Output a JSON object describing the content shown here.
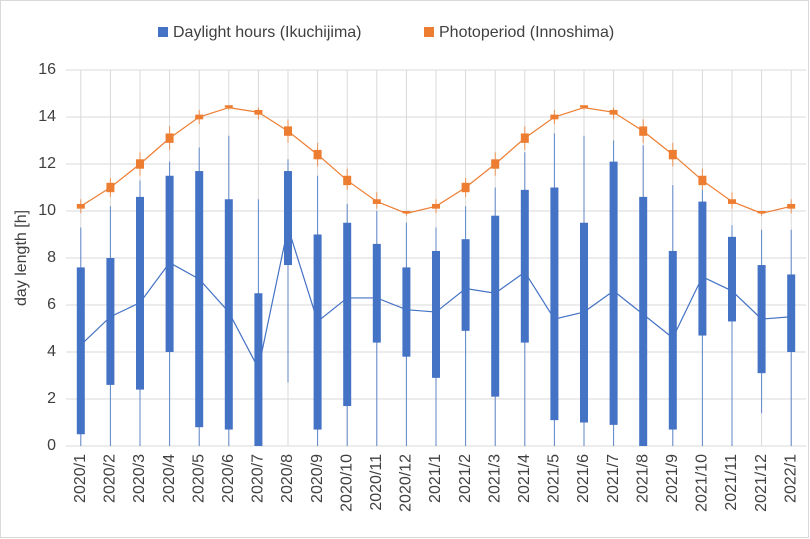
{
  "chart_data": {
    "type": "box",
    "y_label": "day length [h]",
    "categories": [
      "2020/1",
      "2020/2",
      "2020/3",
      "2020/4",
      "2020/5",
      "2020/6",
      "2020/7",
      "2020/8",
      "2020/9",
      "2020/10",
      "2020/11",
      "2020/12",
      "2021/1",
      "2021/2",
      "2021/3",
      "2021/4",
      "2021/5",
      "2021/6",
      "2021/7",
      "2021/8",
      "2021/9",
      "2021/10",
      "2021/11",
      "2021/12",
      "2022/1"
    ],
    "ylim": [
      0,
      16
    ],
    "yticks": [
      0,
      2,
      4,
      6,
      8,
      10,
      12,
      14,
      16
    ],
    "grid": true,
    "legend": "top",
    "series": [
      {
        "name": "Daylight hours (Ikuchijima)",
        "color": "#4472c4",
        "values": [
          4.3,
          5.5,
          6.1,
          7.8,
          7.1,
          5.7,
          3.3,
          9.3,
          5.3,
          6.3,
          6.3,
          5.8,
          5.7,
          6.7,
          6.5,
          7.4,
          5.4,
          5.7,
          6.6,
          5.6,
          4.6,
          7.2,
          6.6,
          5.4,
          5.5
        ],
        "min": [
          0,
          0,
          0,
          0,
          0,
          0,
          0,
          2.7,
          0,
          0,
          0,
          0,
          0,
          0,
          0,
          0,
          0,
          0,
          0,
          0,
          0,
          0,
          0,
          1.4,
          0
        ],
        "low": [
          0.5,
          2.6,
          2.4,
          4.0,
          0.8,
          0.7,
          0,
          7.7,
          0.7,
          1.7,
          4.4,
          3.8,
          2.9,
          4.9,
          2.1,
          4.4,
          1.1,
          1.0,
          0.9,
          0,
          0.7,
          4.7,
          5.3,
          3.1,
          4.0
        ],
        "high": [
          7.6,
          8.0,
          10.6,
          11.5,
          11.7,
          10.5,
          6.5,
          11.7,
          9.0,
          9.5,
          8.6,
          7.6,
          8.3,
          8.8,
          9.8,
          10.9,
          11.0,
          9.5,
          12.1,
          10.6,
          8.3,
          10.4,
          8.9,
          7.7,
          7.3
        ],
        "max": [
          9.3,
          10.2,
          11.3,
          12.1,
          12.7,
          13.2,
          10.5,
          12.2,
          11.5,
          10.3,
          10.0,
          9.5,
          9.3,
          10.2,
          11.0,
          12.5,
          13.3,
          13.2,
          13.0,
          12.8,
          11.1,
          10.9,
          9.4,
          9.2,
          9.2
        ]
      },
      {
        "name": "Photoperiod (Innoshima)",
        "color": "#ed7d31",
        "values": [
          10.2,
          11.0,
          12.0,
          13.1,
          14.0,
          14.4,
          14.2,
          13.4,
          12.4,
          11.3,
          10.4,
          9.9,
          10.2,
          11.0,
          12.0,
          13.1,
          14.0,
          14.4,
          14.2,
          13.4,
          12.4,
          11.3,
          10.4,
          9.9,
          10.2
        ],
        "min": [
          9.9,
          10.6,
          11.5,
          12.6,
          13.7,
          14.3,
          13.9,
          12.9,
          11.9,
          10.9,
          10.1,
          9.8,
          9.9,
          10.6,
          11.5,
          12.6,
          13.7,
          14.3,
          13.9,
          12.9,
          11.9,
          10.9,
          10.1,
          9.8,
          9.9
        ],
        "low": [
          10.1,
          10.8,
          11.8,
          12.9,
          13.9,
          14.4,
          14.1,
          13.2,
          12.2,
          11.1,
          10.3,
          9.9,
          10.1,
          10.8,
          11.8,
          12.9,
          13.9,
          14.4,
          14.1,
          13.2,
          12.2,
          11.1,
          10.3,
          9.9,
          10.1
        ],
        "high": [
          10.3,
          11.2,
          12.2,
          13.3,
          14.1,
          14.5,
          14.3,
          13.6,
          12.6,
          11.5,
          10.5,
          10.0,
          10.3,
          11.2,
          12.2,
          13.3,
          14.1,
          14.5,
          14.3,
          13.6,
          12.6,
          11.5,
          10.5,
          10.0,
          10.3
        ],
        "max": [
          10.5,
          11.4,
          12.5,
          13.6,
          14.3,
          14.5,
          14.4,
          13.9,
          12.9,
          11.8,
          10.8,
          10.0,
          10.5,
          11.4,
          12.5,
          13.6,
          14.3,
          14.5,
          14.4,
          13.9,
          12.9,
          11.8,
          10.8,
          10.0,
          10.5
        ]
      }
    ]
  }
}
